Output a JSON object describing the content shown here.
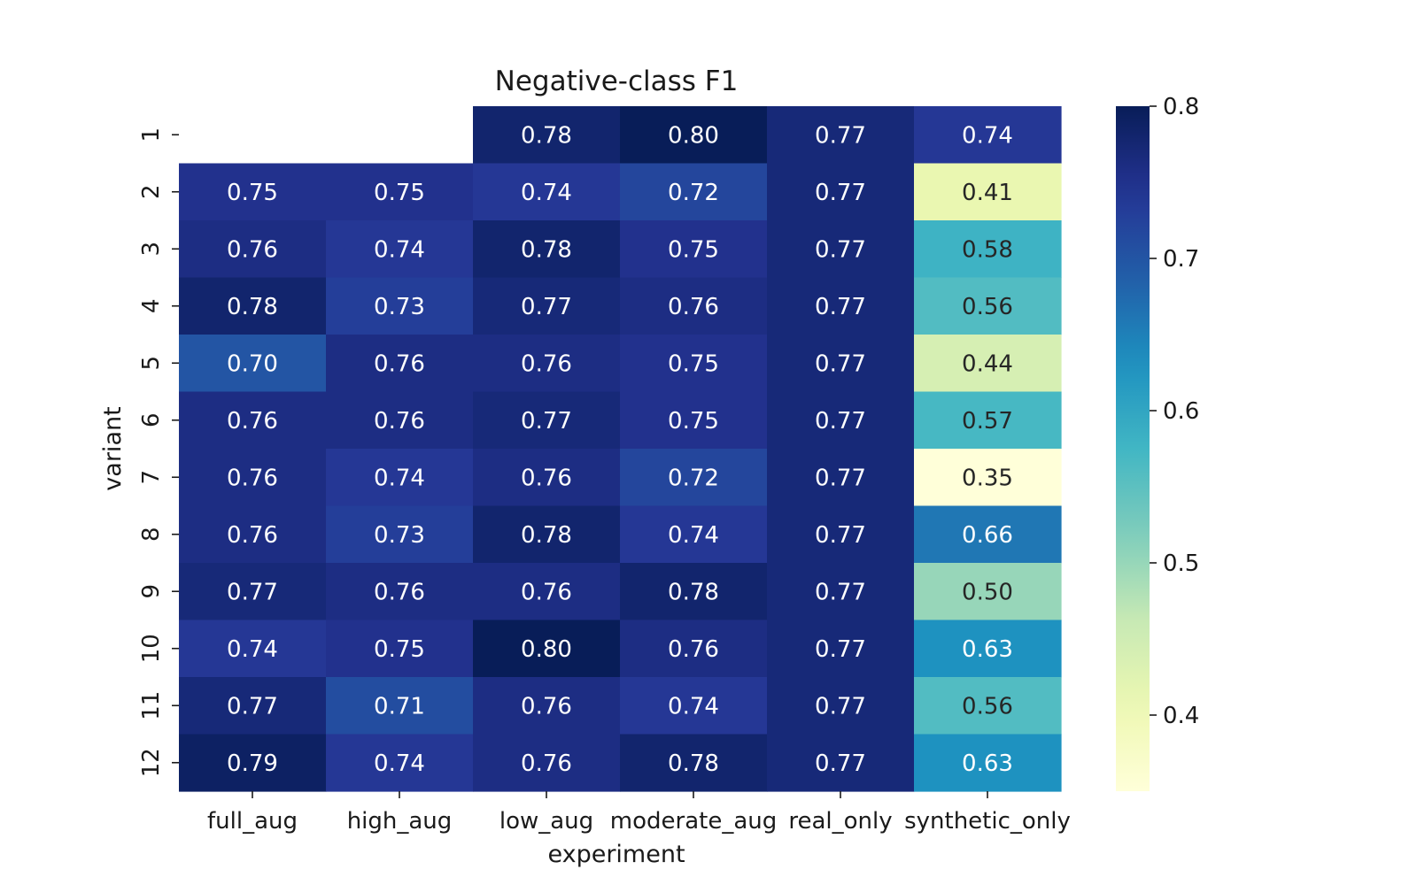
{
  "chart_data": {
    "type": "heatmap",
    "title": "Negative-class F1",
    "xlabel": "experiment",
    "ylabel": "variant",
    "categories_x": [
      "full_aug",
      "high_aug",
      "low_aug",
      "moderate_aug",
      "real_only",
      "synthetic_only"
    ],
    "categories_y": [
      "1",
      "2",
      "3",
      "4",
      "5",
      "6",
      "7",
      "8",
      "9",
      "10",
      "11",
      "12"
    ],
    "values": [
      [
        null,
        null,
        0.78,
        0.8,
        0.77,
        0.74
      ],
      [
        0.75,
        0.75,
        0.74,
        0.72,
        0.77,
        0.41
      ],
      [
        0.76,
        0.74,
        0.78,
        0.75,
        0.77,
        0.58
      ],
      [
        0.78,
        0.73,
        0.77,
        0.76,
        0.77,
        0.56
      ],
      [
        0.7,
        0.76,
        0.76,
        0.75,
        0.77,
        0.44
      ],
      [
        0.76,
        0.76,
        0.77,
        0.75,
        0.77,
        0.57
      ],
      [
        0.76,
        0.74,
        0.76,
        0.72,
        0.77,
        0.35
      ],
      [
        0.76,
        0.73,
        0.78,
        0.74,
        0.77,
        0.66
      ],
      [
        0.77,
        0.76,
        0.76,
        0.78,
        0.77,
        0.5
      ],
      [
        0.74,
        0.75,
        0.8,
        0.76,
        0.77,
        0.63
      ],
      [
        0.77,
        0.71,
        0.76,
        0.74,
        0.77,
        0.56
      ],
      [
        0.79,
        0.74,
        0.76,
        0.78,
        0.77,
        0.63
      ]
    ],
    "value_format": "2 decimals",
    "colormap": "YlGnBu",
    "colorbar": {
      "range": [
        0.35,
        0.8
      ],
      "ticks": [
        "0.4",
        "0.5",
        "0.6",
        "0.7",
        "0.8"
      ]
    },
    "grid": false
  }
}
